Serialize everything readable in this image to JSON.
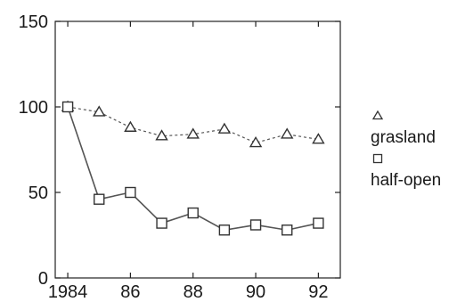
{
  "chart_data": {
    "type": "line",
    "x": [
      1984,
      1985,
      1986,
      1987,
      1988,
      1989,
      1990,
      1991,
      1992
    ],
    "xlim": [
      1983.6,
      1992.7
    ],
    "ylim": [
      0,
      150
    ],
    "x_ticks": [
      {
        "value": 1984,
        "label": "1984"
      },
      {
        "value": 1986,
        "label": "86"
      },
      {
        "value": 1988,
        "label": "88"
      },
      {
        "value": 1990,
        "label": "90"
      },
      {
        "value": 1992,
        "label": "92"
      }
    ],
    "y_ticks": [
      {
        "value": 0,
        "label": "0"
      },
      {
        "value": 50,
        "label": "50"
      },
      {
        "value": 100,
        "label": "100"
      },
      {
        "value": 150,
        "label": "150"
      }
    ],
    "grid": false,
    "legend_position": "right",
    "series": [
      {
        "name": "grasland",
        "marker": "triangle",
        "values": [
          100,
          97,
          88,
          83,
          84,
          87,
          79,
          84,
          81
        ]
      },
      {
        "name": "half-open",
        "marker": "square",
        "values": [
          100,
          46,
          50,
          32,
          38,
          28,
          31,
          28,
          32
        ]
      }
    ],
    "colors": {
      "line": "#555555",
      "marker_stroke": "#333333",
      "axis": "#222222",
      "text": "#1a1a1a"
    }
  }
}
